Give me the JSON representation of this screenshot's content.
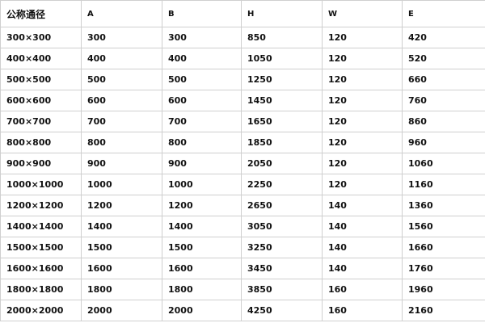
{
  "table": {
    "header": [
      "公称通径",
      "A",
      "B",
      "H",
      "W",
      "E"
    ],
    "rows": [
      [
        "300×300",
        "300",
        "300",
        "850",
        "120",
        "420"
      ],
      [
        "400×400",
        "400",
        "400",
        "1050",
        "120",
        "520"
      ],
      [
        "500×500",
        "500",
        "500",
        "1250",
        "120",
        "660"
      ],
      [
        "600×600",
        "600",
        "600",
        "1450",
        "120",
        "760"
      ],
      [
        "700×700",
        "700",
        "700",
        "1650",
        "120",
        "860"
      ],
      [
        "800×800",
        "800",
        "800",
        "1850",
        "120",
        "960"
      ],
      [
        "900×900",
        "900",
        "900",
        "2050",
        "120",
        "1060"
      ],
      [
        "1000×1000",
        "1000",
        "1000",
        "2250",
        "120",
        "1160"
      ],
      [
        "1200×1200",
        "1200",
        "1200",
        "2650",
        "140",
        "1360"
      ],
      [
        "1400×1400",
        "1400",
        "1400",
        "3050",
        "140",
        "1560"
      ],
      [
        "1500×1500",
        "1500",
        "1500",
        "3250",
        "140",
        "1660"
      ],
      [
        "1600×1600",
        "1600",
        "1600",
        "3450",
        "140",
        "1760"
      ],
      [
        "1800×1800",
        "1800",
        "1800",
        "3850",
        "160",
        "1960"
      ],
      [
        "2000×2000",
        "2000",
        "2000",
        "4250",
        "160",
        "2160"
      ]
    ]
  }
}
